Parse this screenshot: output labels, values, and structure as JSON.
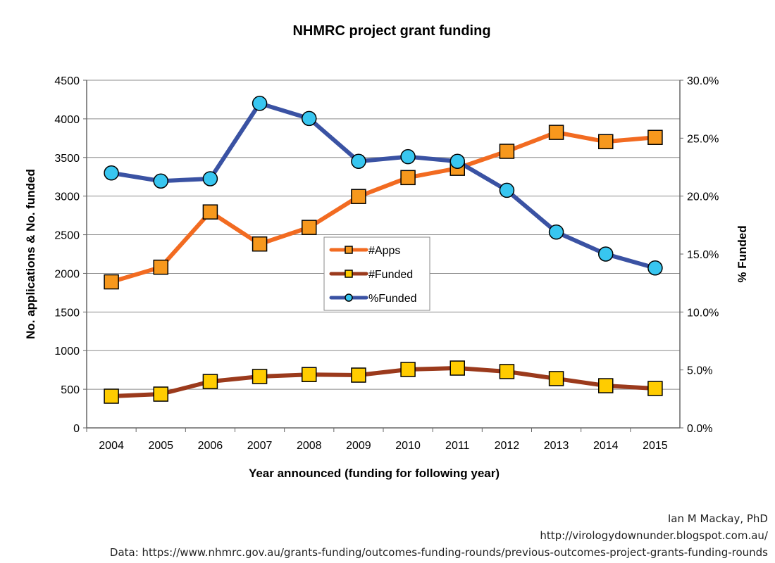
{
  "chart_data": {
    "type": "line",
    "title": "NHMRC project grant funding",
    "xlabel": "Year announced (funding for following year)",
    "ylabel": "No. applications & No. funded",
    "y2label": "% Funded",
    "categories": [
      "2004",
      "2005",
      "2006",
      "2007",
      "2008",
      "2009",
      "2010",
      "2011",
      "2012",
      "2013",
      "2014",
      "2015"
    ],
    "ylim": [
      0,
      4500
    ],
    "yticks": [
      "0",
      "500",
      "1000",
      "1500",
      "2000",
      "2500",
      "3000",
      "3500",
      "4000",
      "4500"
    ],
    "y2lim": [
      0,
      30
    ],
    "y2ticks": [
      "0.0%",
      "5.0%",
      "10.0%",
      "15.0%",
      "20.0%",
      "25.0%",
      "30.0%"
    ],
    "grid": true,
    "legend_position": "center",
    "series": [
      {
        "name": "#Apps",
        "axis": "left",
        "line_color": "#f26b21",
        "marker": "square",
        "marker_color": "#f7981d",
        "values": [
          1890,
          2080,
          2795,
          2380,
          2595,
          2995,
          3240,
          3360,
          3580,
          3825,
          3705,
          3760
        ]
      },
      {
        "name": "#Funded",
        "axis": "left",
        "line_color": "#9b3a1c",
        "marker": "square",
        "marker_color": "#ffcc00",
        "values": [
          410,
          437,
          600,
          665,
          690,
          683,
          756,
          774,
          729,
          638,
          546,
          510
        ]
      },
      {
        "name": "%Funded",
        "axis": "right",
        "line_color": "#3a52a3",
        "marker": "circle",
        "marker_color": "#38c6f0",
        "values": [
          22.0,
          21.3,
          21.5,
          28.0,
          26.7,
          23.0,
          23.4,
          23.0,
          20.5,
          16.9,
          15.0,
          13.8
        ]
      }
    ]
  },
  "credits": {
    "author": "Ian M Mackay, PhD",
    "blog": "http://virologydownunder.blogspot.com.au/",
    "source": "Data: https://www.nhmrc.gov.au/grants-funding/outcomes-funding-rounds/previous-outcomes-project-grants-funding-rounds"
  }
}
